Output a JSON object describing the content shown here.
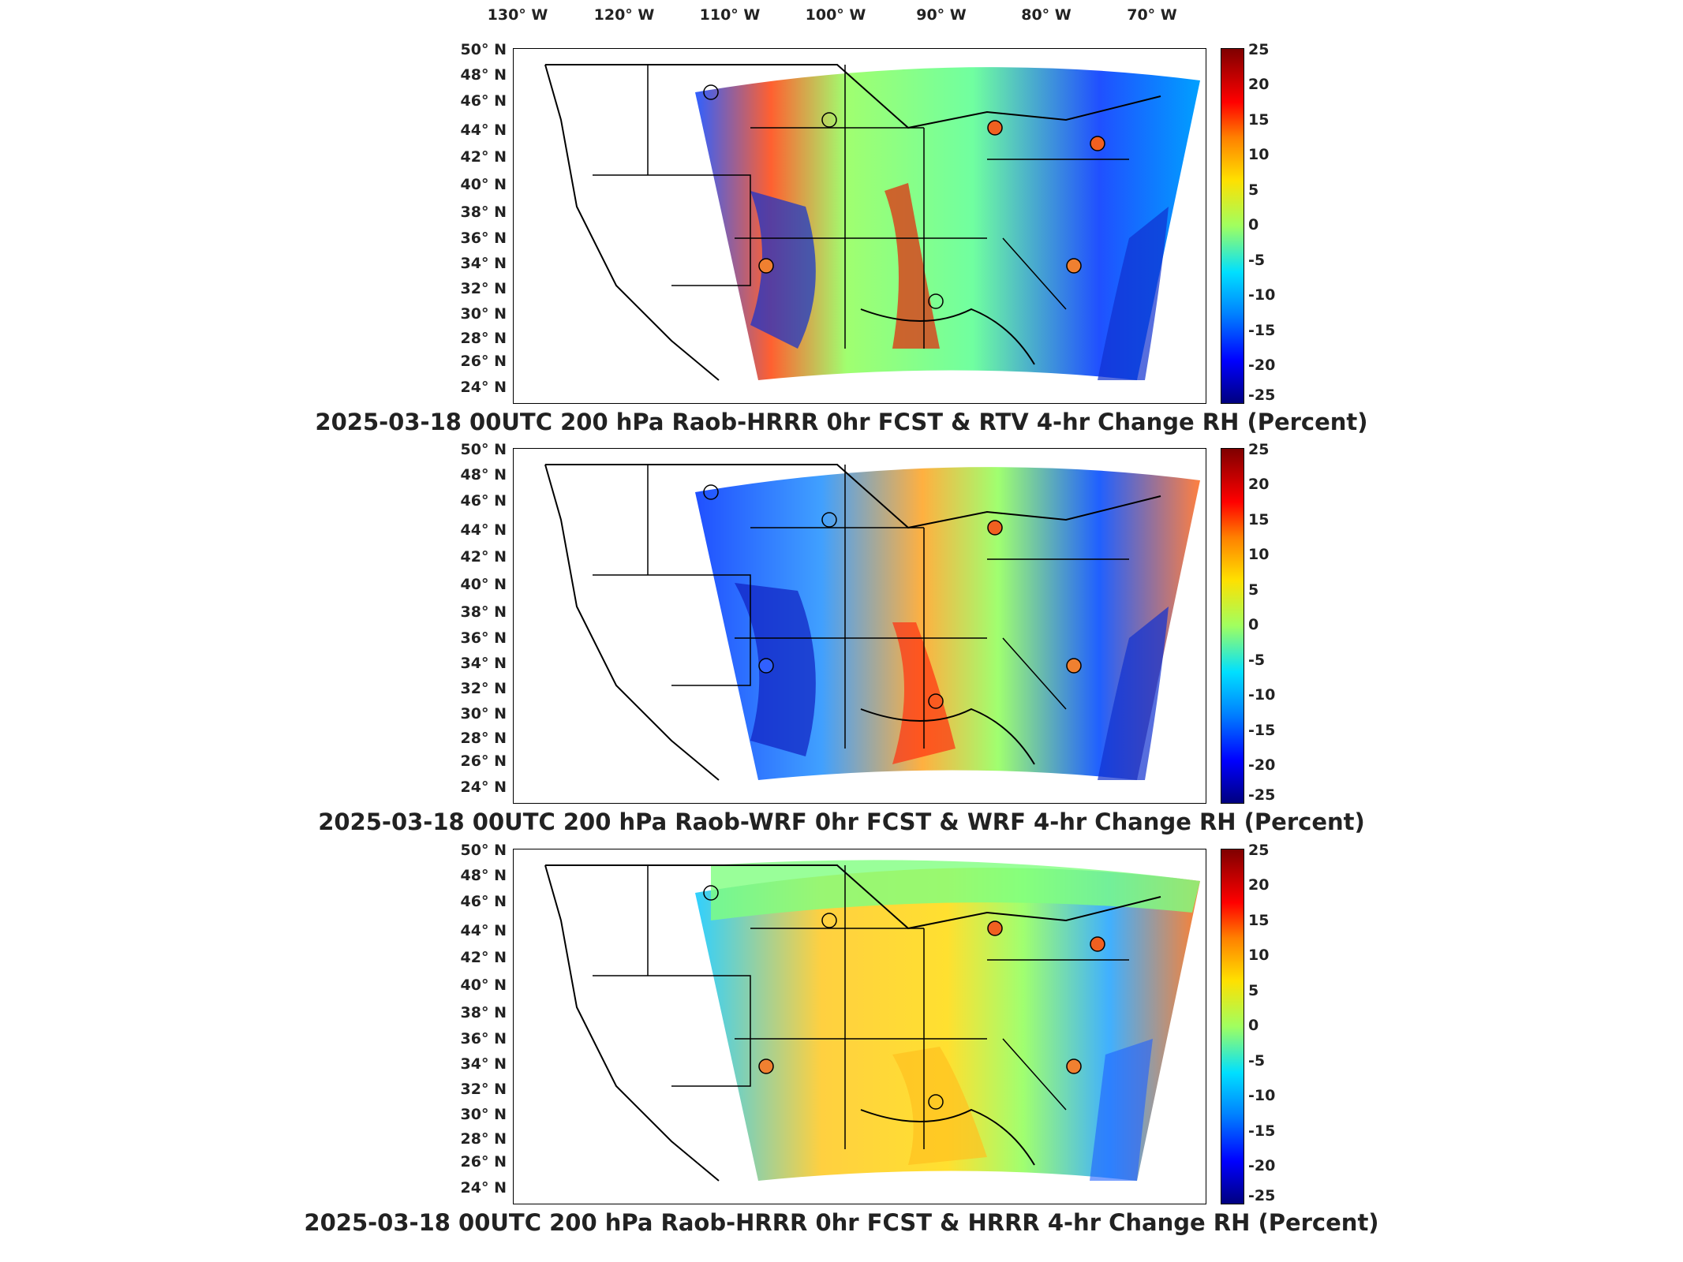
{
  "longitude_labels": [
    "130° W",
    "120° W",
    "110° W",
    "100° W",
    "90° W",
    "80° W",
    "70° W"
  ],
  "latitude_labels": [
    "50° N",
    "48° N",
    "46° N",
    "44° N",
    "42° N",
    "40° N",
    "38° N",
    "36° N",
    "34° N",
    "32° N",
    "30° N",
    "28° N",
    "26° N",
    "24° N"
  ],
  "colorbar_ticks": [
    "25",
    "20",
    "15",
    "10",
    "5",
    "0",
    "-5",
    "-10",
    "-15",
    "-20",
    "-25"
  ],
  "colors": {
    "positive": "#ff4000",
    "negative": "#0020ff",
    "neutral": "#90ff70",
    "station_positive": "#f08030"
  },
  "panels": [
    {
      "title": "2025-03-18 00UTC 200 hPa Raob-HRRR 0hr FCST & RTV 4-hr Change RH (Percent)"
    },
    {
      "title": "2025-03-18 00UTC 200 hPa Raob-WRF 0hr FCST & WRF 4-hr Change RH (Percent)"
    },
    {
      "title": "2025-03-18 00UTC 200 hPa Raob-HRRR 0hr FCST & HRRR 4-hr Change RH (Percent)"
    }
  ]
}
